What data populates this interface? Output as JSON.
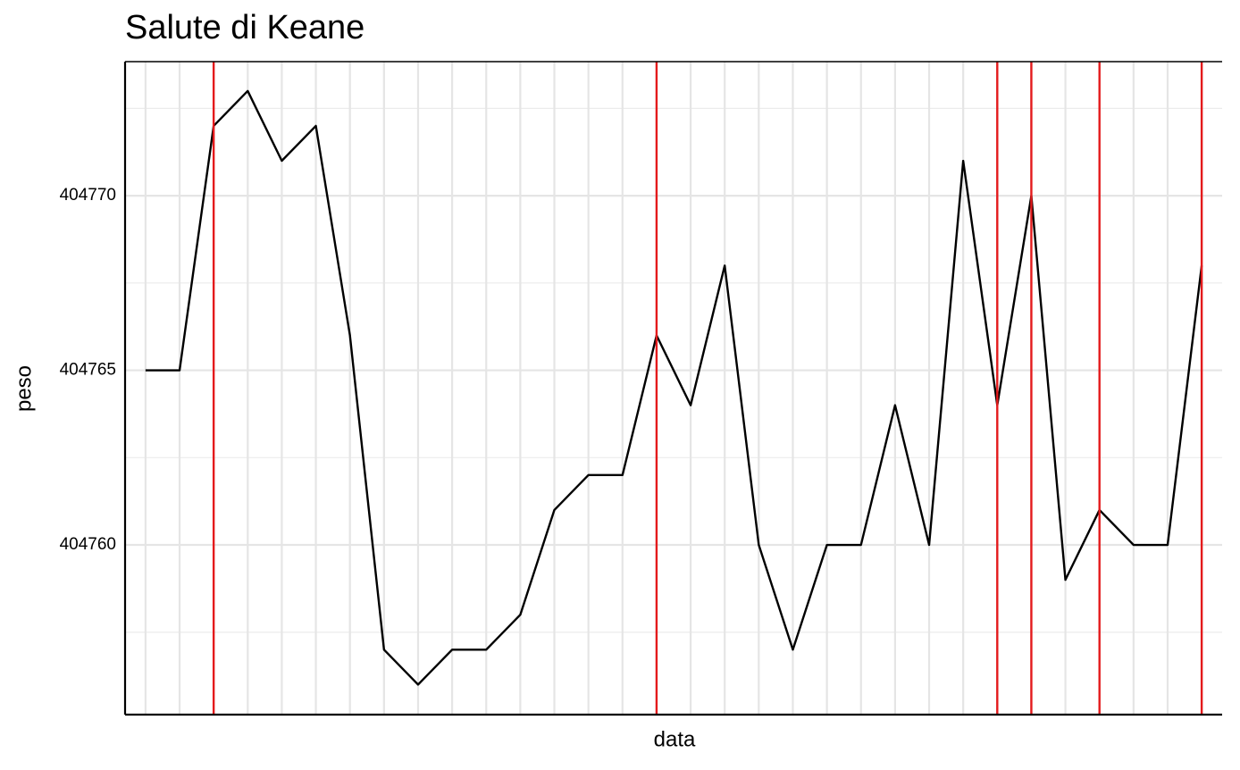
{
  "chart_data": {
    "type": "line",
    "title": "Salute di Keane",
    "x_label": "data",
    "y_label": "peso",
    "categories": [
      null,
      null,
      null,
      null,
      null,
      null,
      null,
      null,
      null,
      null,
      null,
      null,
      null,
      null,
      null,
      null,
      null,
      null,
      null,
      null,
      null,
      null,
      null,
      null,
      null,
      null,
      null,
      null,
      null,
      null,
      null,
      null
    ],
    "series": [
      {
        "name": "peso",
        "color": "#000000",
        "values": [
          404765,
          404765,
          404772,
          404773,
          404771,
          404772,
          404766,
          404757,
          404756,
          404757,
          404757,
          404758,
          404761,
          404762,
          404762,
          404766,
          404764,
          404768,
          404760,
          404757,
          404760,
          404760,
          404764,
          404760,
          404771,
          404764,
          404770,
          404759,
          404761,
          404760,
          404760,
          404768
        ]
      }
    ],
    "highlight": {
      "color": "#e41a1c",
      "indices": [
        2,
        15,
        25,
        26,
        28,
        31
      ]
    },
    "ylim": [
      404755.14,
      404773.84
    ],
    "yticks": [
      404760,
      404765,
      404770
    ],
    "yminor_ticks": [
      404757.5,
      404762.5,
      404767.5,
      404772.5
    ],
    "grid": true
  }
}
